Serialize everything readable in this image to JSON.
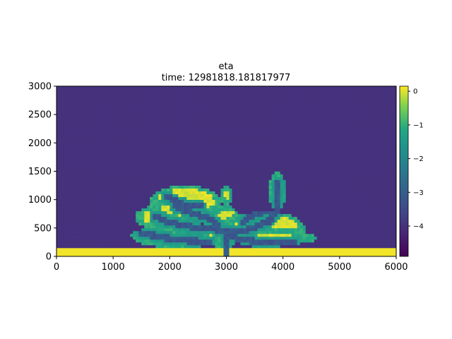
{
  "chart_data": {
    "type": "heatmap",
    "title": "eta",
    "subtitle": "time: 12981818.181817977",
    "xlim": [
      0,
      6000
    ],
    "ylim": [
      0,
      3000
    ],
    "x_ticks": [
      0,
      1000,
      2000,
      3000,
      4000,
      5000,
      6000
    ],
    "y_ticks": [
      0,
      500,
      1000,
      1500,
      2000,
      2500,
      3000
    ],
    "colorbar": {
      "ticks": [
        0,
        -1,
        -2,
        -3,
        -4
      ],
      "tick_labels": [
        "0",
        "−1",
        "−2",
        "−3",
        "−4"
      ],
      "range": [
        -4.9,
        0.15
      ],
      "colormap": "viridis"
    },
    "grid": false,
    "background_value": -4.0,
    "land_value": 0.1,
    "channel_value": -3.0,
    "deep_value": -4.9,
    "land_strip": {
      "y_max": 150,
      "x_range": [
        0,
        6000
      ]
    },
    "inlet": {
      "x_range": [
        2950,
        3050
      ],
      "y_range": [
        0,
        150
      ]
    },
    "deposit_blobs": [
      {
        "x": [
          1380,
          2650
        ],
        "y": [
          450,
          940
        ]
      },
      {
        "x": [
          1650,
          2900
        ],
        "y": [
          660,
          1260
        ]
      },
      {
        "x": [
          1320,
          3000
        ],
        "y": [
          150,
          560
        ]
      },
      {
        "x": [
          2600,
          3300
        ],
        "y": [
          150,
          900
        ]
      },
      {
        "x": [
          2900,
          3100
        ],
        "y": [
          900,
          1260
        ]
      },
      {
        "x": [
          3000,
          4400
        ],
        "y": [
          150,
          800
        ]
      },
      {
        "x": [
          3100,
          4600
        ],
        "y": [
          200,
          450
        ]
      },
      {
        "x": [
          3750,
          4050
        ],
        "y": [
          800,
          1480
        ]
      }
    ],
    "channels": [
      [
        [
          3000,
          150
        ],
        [
          3000,
          420
        ],
        [
          2750,
          500
        ],
        [
          2400,
          520
        ],
        [
          2000,
          600
        ],
        [
          1750,
          700
        ]
      ],
      [
        [
          3000,
          420
        ],
        [
          3350,
          460
        ],
        [
          3750,
          620
        ],
        [
          3900,
          800
        ],
        [
          3920,
          1300
        ]
      ],
      [
        [
          3000,
          420
        ],
        [
          3250,
          300
        ],
        [
          3700,
          240
        ],
        [
          4200,
          260
        ]
      ],
      [
        [
          2100,
          880
        ],
        [
          2400,
          760
        ],
        [
          2700,
          660
        ],
        [
          2850,
          560
        ]
      ],
      [
        [
          1500,
          420
        ],
        [
          1900,
          330
        ],
        [
          2300,
          280
        ],
        [
          2700,
          260
        ]
      ],
      [
        [
          1950,
          1050
        ],
        [
          2250,
          920
        ],
        [
          2550,
          880
        ]
      ],
      [
        [
          3300,
          620
        ],
        [
          3550,
          760
        ],
        [
          3750,
          800
        ]
      ]
    ]
  }
}
